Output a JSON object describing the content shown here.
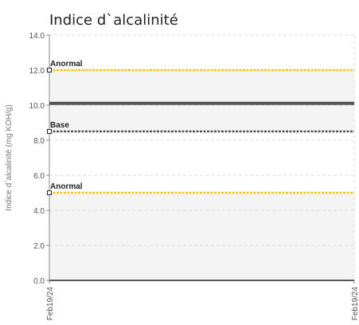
{
  "chart_data": {
    "type": "line",
    "title": "Indice d`alcalinité",
    "xlabel": "",
    "ylabel": "Indice d`alcalinité (mg KOH/g)",
    "ylim": [
      0,
      14
    ],
    "yticks": [
      "0.0",
      "2.0",
      "4.0",
      "6.0",
      "8.0",
      "10.0",
      "12.0",
      "14.0"
    ],
    "x": [
      "Feb19/24",
      "Feb19/24"
    ],
    "grid": true,
    "series": [
      {
        "values": [
          10.1,
          10.1
        ],
        "color": "#555555"
      }
    ],
    "reference_lines": [
      {
        "label": "Anormal",
        "value": 12.0,
        "color": "#f5c518"
      },
      {
        "label": "Base",
        "value": 8.5,
        "color": "#555555"
      },
      {
        "label": "Anormal",
        "value": 5.0,
        "color": "#f5c518"
      }
    ],
    "bands": [
      {
        "from": 8.5,
        "to": 12.0,
        "color": "#f4f4f4"
      },
      {
        "from": 0.0,
        "to": 5.0,
        "color": "#f4f4f4"
      }
    ]
  }
}
